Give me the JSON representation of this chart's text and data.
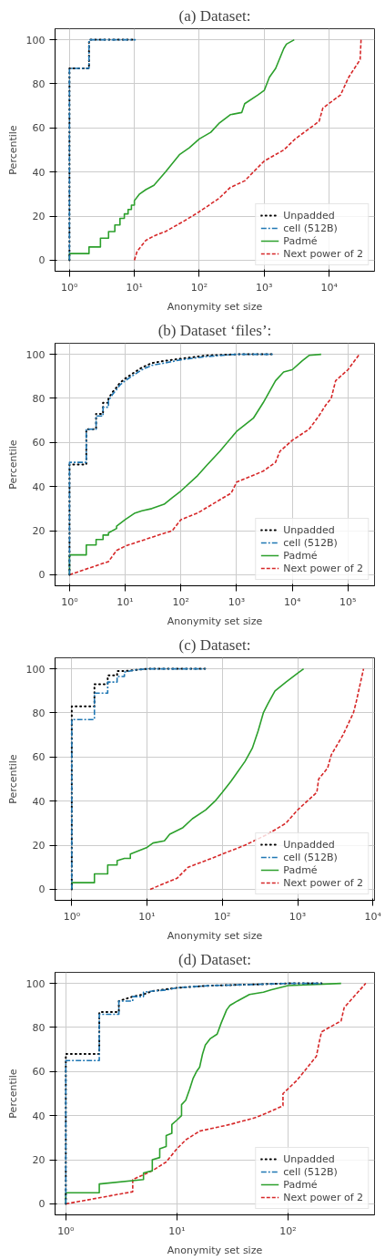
{
  "chart_data": [
    {
      "type": "line",
      "title": "(a) Dataset:",
      "xlabel": "Anonymity set size",
      "ylabel": "Percentile",
      "log": "x",
      "grid": true,
      "legend": "bottom right",
      "xlim": [
        0.6,
        50000
      ],
      "ylim": [
        -5,
        105
      ],
      "xticks": [
        {
          "value": 1,
          "label": "10⁰"
        },
        {
          "value": 10,
          "label": "10¹"
        },
        {
          "value": 100,
          "label": "10²"
        },
        {
          "value": 1000,
          "label": "10³"
        },
        {
          "value": 10000,
          "label": "10⁴"
        }
      ],
      "yticks": [
        0,
        20,
        40,
        60,
        80,
        100
      ],
      "series": [
        {
          "name": "Unpadded",
          "color": "#000000",
          "line_style": "dotted",
          "x": [
            1,
            1,
            2,
            2,
            10
          ],
          "values": [
            0,
            87,
            87,
            100,
            100
          ]
        },
        {
          "name": "cell (512B)",
          "color": "#1f77b4",
          "line_style": "dashdot",
          "x": [
            1,
            1,
            2,
            2,
            10.5
          ],
          "values": [
            0,
            87,
            87,
            100,
            100
          ]
        },
        {
          "name": "Padmé",
          "color": "#2ca02c",
          "line_style": "solid",
          "x": [
            1,
            1,
            2,
            2,
            3,
            3,
            4,
            4,
            5,
            5,
            6,
            6,
            7,
            7,
            8,
            8,
            9,
            9,
            10,
            10,
            12,
            15,
            20,
            30,
            50,
            70,
            100,
            150,
            200,
            300,
            450,
            500,
            800,
            1000,
            1200,
            1500,
            2000,
            2200,
            2900
          ],
          "values": [
            0,
            3,
            3,
            6,
            6,
            10,
            10,
            13,
            13,
            16,
            16,
            19,
            19,
            21,
            21,
            23,
            23,
            25,
            25,
            27,
            30,
            32,
            34,
            40,
            48,
            51,
            55,
            58,
            62,
            66,
            67,
            71,
            75,
            77,
            83,
            87,
            96,
            98,
            100
          ]
        },
        {
          "name": "Next power of 2",
          "color": "#d62728",
          "line_style": "dashed",
          "x": [
            10,
            11,
            15,
            20,
            30,
            60,
            100,
            200,
            300,
            500,
            1000,
            2000,
            3000,
            7000,
            8000,
            15000,
            20000,
            30000,
            31000
          ],
          "values": [
            0,
            4,
            9,
            11,
            13,
            18,
            22,
            28,
            33,
            36,
            45,
            50,
            55,
            63,
            69,
            75,
            83,
            91,
            100
          ]
        }
      ]
    },
    {
      "type": "line",
      "title": "(b) Dataset ‘files’:",
      "xlabel": "Anonymity set size",
      "ylabel": "Percentile",
      "log": "x",
      "grid": true,
      "legend": "bottom right",
      "xlim": [
        0.55,
        300000
      ],
      "ylim": [
        -5,
        105
      ],
      "xticks": [
        {
          "value": 1,
          "label": "10⁰"
        },
        {
          "value": 10,
          "label": "10¹"
        },
        {
          "value": 100,
          "label": "10²"
        },
        {
          "value": 1000,
          "label": "10³"
        },
        {
          "value": 10000,
          "label": "10⁴"
        },
        {
          "value": 100000,
          "label": "10⁵"
        }
      ],
      "yticks": [
        0,
        20,
        40,
        60,
        80,
        100
      ],
      "series": [
        {
          "name": "Unpadded",
          "color": "#000000",
          "line_style": "dotted",
          "x": [
            1,
            1,
            2,
            2,
            3,
            3,
            4,
            4,
            5,
            5,
            6,
            7,
            8,
            10,
            15,
            20,
            30,
            50,
            100,
            300,
            1000,
            4500
          ],
          "values": [
            0,
            50,
            50,
            66,
            66,
            73,
            73,
            78,
            78,
            80,
            83,
            85,
            87,
            89,
            92,
            94,
            96,
            97,
            98,
            99.5,
            100,
            100
          ]
        },
        {
          "name": "cell (512B)",
          "color": "#1f77b4",
          "line_style": "dashdot",
          "x": [
            1,
            1,
            2,
            2,
            3,
            3,
            4,
            4,
            5,
            5,
            6,
            7,
            8,
            10,
            15,
            20,
            30,
            50,
            100,
            300,
            1000,
            4500
          ],
          "values": [
            0,
            51,
            51,
            66,
            66,
            72,
            72,
            76,
            76,
            79,
            82,
            84,
            86,
            88,
            91,
            93,
            95,
            96,
            97.5,
            99,
            100,
            100
          ]
        },
        {
          "name": "Padmé",
          "color": "#2ca02c",
          "line_style": "solid",
          "x": [
            1,
            1,
            2,
            2,
            3,
            3,
            4,
            4,
            5,
            5,
            7,
            7,
            10,
            15,
            20,
            30,
            50,
            70,
            100,
            200,
            300,
            500,
            1000,
            2000,
            3000,
            5000,
            7000,
            10000,
            15000,
            20000,
            33000
          ],
          "values": [
            0,
            9,
            9,
            13.5,
            13.5,
            16,
            16,
            18,
            18,
            19,
            21,
            22,
            25,
            28,
            29,
            30,
            32,
            35,
            38,
            45,
            50,
            56,
            65,
            71,
            78,
            88,
            92,
            93,
            97,
            99.5,
            100
          ]
        },
        {
          "name": "Next power of 2",
          "color": "#d62728",
          "line_style": "dashed",
          "x": [
            1,
            5,
            7,
            10,
            30,
            70,
            100,
            200,
            500,
            800,
            1000,
            3000,
            5000,
            6000,
            10000,
            20000,
            30000,
            40000,
            50000,
            60000,
            100000,
            160000
          ],
          "values": [
            0,
            6,
            11,
            13,
            17,
            20,
            25,
            28,
            34,
            37,
            42,
            47,
            51,
            56,
            61,
            66,
            72,
            77,
            80,
            88,
            93,
            100
          ]
        }
      ]
    },
    {
      "type": "line",
      "title": "(c) Dataset:",
      "xlabel": "Anonymity set size",
      "ylabel": "Percentile",
      "log": "x",
      "grid": true,
      "legend": "bottom right",
      "xlim": [
        0.6,
        10500
      ],
      "ylim": [
        -5,
        105
      ],
      "xticks": [
        {
          "value": 1,
          "label": "10⁰"
        },
        {
          "value": 10,
          "label": "10¹"
        },
        {
          "value": 100,
          "label": "10²"
        },
        {
          "value": 1000,
          "label": "10³"
        },
        {
          "value": 10000,
          "label": "10⁴"
        }
      ],
      "yticks": [
        0,
        20,
        40,
        60,
        80,
        100
      ],
      "series": [
        {
          "name": "Unpadded",
          "color": "#000000",
          "line_style": "dotted",
          "x": [
            1,
            1,
            2,
            2,
            3,
            3,
            4,
            4,
            5,
            7,
            10,
            60
          ],
          "values": [
            0,
            83,
            83,
            93,
            93,
            97,
            97,
            99,
            99,
            99.5,
            100,
            100
          ]
        },
        {
          "name": "cell (512B)",
          "color": "#1f77b4",
          "line_style": "dashdot",
          "x": [
            1,
            1,
            2,
            2,
            3,
            3,
            4,
            4,
            5,
            5,
            7,
            10,
            60
          ],
          "values": [
            0,
            77,
            77,
            89,
            89,
            94,
            94,
            96.5,
            96.5,
            98.5,
            99.5,
            100,
            100
          ]
        },
        {
          "name": "Padmé",
          "color": "#2ca02c",
          "line_style": "solid",
          "x": [
            1,
            1,
            2,
            2,
            3,
            3,
            4,
            4,
            5,
            6,
            6,
            10,
            12,
            17,
            20,
            30,
            40,
            60,
            80,
            100,
            130,
            150,
            200,
            250,
            300,
            350,
            400,
            500,
            700,
            1000,
            1200
          ],
          "values": [
            0,
            3,
            3,
            7,
            7,
            11,
            11,
            13,
            14,
            14,
            16,
            19,
            21,
            22,
            25,
            28,
            32,
            36,
            40,
            44,
            49,
            52,
            58,
            64,
            72,
            80,
            84,
            90,
            94,
            98,
            100
          ]
        },
        {
          "name": "Next power of 2",
          "color": "#d62728",
          "line_style": "dashed",
          "x": [
            11,
            25,
            35,
            60,
            100,
            200,
            400,
            700,
            1000,
            1800,
            1900,
            2500,
            2800,
            4000,
            5500,
            6000,
            7500
          ],
          "values": [
            0,
            5,
            10,
            13,
            16,
            20,
            25,
            30,
            36,
            44,
            50,
            55,
            61,
            70,
            80,
            85,
            100
          ]
        }
      ]
    },
    {
      "type": "line",
      "title": "(d) Dataset:",
      "xlabel": "Anonymity set size",
      "ylabel": "Percentile",
      "log": "x",
      "grid": true,
      "legend": "bottom right",
      "xlim": [
        0.8,
        600
      ],
      "ylim": [
        -5,
        105
      ],
      "xticks": [
        {
          "value": 1,
          "label": "10⁰"
        },
        {
          "value": 10,
          "label": "10¹"
        },
        {
          "value": 100,
          "label": "10²"
        }
      ],
      "yticks": [
        0,
        20,
        40,
        60,
        80,
        100
      ],
      "series": [
        {
          "name": "Unpadded",
          "color": "#000000",
          "line_style": "dotted",
          "x": [
            1,
            1,
            2,
            2,
            3,
            3,
            4,
            5,
            6,
            10,
            20,
            50,
            100,
            200
          ],
          "values": [
            0,
            68,
            68,
            87,
            87,
            92,
            94,
            95,
            96.5,
            98,
            99,
            99.5,
            100,
            100
          ]
        },
        {
          "name": "cell (512B)",
          "color": "#1f77b4",
          "line_style": "dashdot",
          "x": [
            1,
            1,
            2,
            2,
            3,
            3,
            4,
            4,
            5,
            5,
            6,
            8,
            10,
            20,
            50,
            100,
            200
          ],
          "values": [
            0,
            65,
            65,
            86,
            86,
            92,
            92,
            94,
            94,
            96,
            96.5,
            97,
            98,
            99,
            99.5,
            100,
            100
          ]
        },
        {
          "name": "Padmé",
          "color": "#2ca02c",
          "line_style": "solid",
          "x": [
            1,
            1,
            2,
            2,
            5,
            5,
            6,
            6,
            7,
            7,
            8,
            8,
            9,
            9,
            10,
            11,
            11,
            12,
            13,
            14,
            15,
            16,
            17,
            18,
            20,
            23,
            25,
            28,
            30,
            35,
            45,
            60,
            70,
            100,
            300
          ],
          "values": [
            0,
            5,
            5,
            9,
            11,
            14,
            15,
            20,
            21,
            25,
            26,
            31,
            32,
            36,
            38,
            40,
            45,
            47,
            52,
            57,
            60,
            62,
            68,
            72,
            75,
            77,
            82,
            88,
            90,
            92,
            95,
            96,
            97,
            99,
            100
          ]
        },
        {
          "name": "Next power of 2",
          "color": "#d62728",
          "line_style": "dashed",
          "x": [
            1,
            4,
            4,
            6,
            8,
            10,
            12,
            16,
            30,
            50,
            70,
            90,
            90,
            120,
            150,
            180,
            190,
            200,
            300,
            320,
            500
          ],
          "values": [
            0,
            5.5,
            11,
            15,
            19,
            25,
            29,
            33,
            36,
            39,
            42,
            44.5,
            50,
            56,
            62,
            67,
            73,
            78,
            83,
            89,
            100
          ]
        }
      ]
    }
  ]
}
